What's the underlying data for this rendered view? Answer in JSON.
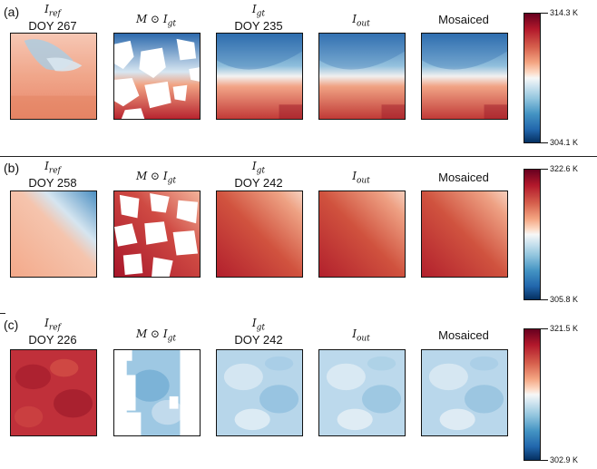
{
  "figure": {
    "rows": [
      {
        "label": "(a)",
        "titles": [
          {
            "math_base": "I",
            "math_sub": "ref",
            "doy": "DOY 267"
          },
          {
            "math_base": "M ⊙ I",
            "math_sub": "gt",
            "doy": ""
          },
          {
            "math_base": "I",
            "math_sub": "gt",
            "doy": "DOY 235"
          },
          {
            "math_base": "I",
            "math_sub": "out",
            "doy": ""
          },
          {
            "text": "Mosaiced"
          }
        ],
        "colorbar": {
          "max_label": "314.3 K",
          "min_label": "304.1 K"
        }
      },
      {
        "label": "(b)",
        "titles": [
          {
            "math_base": "I",
            "math_sub": "ref",
            "doy": "DOY 258"
          },
          {
            "math_base": "M ⊙ I",
            "math_sub": "gt",
            "doy": ""
          },
          {
            "math_base": "I",
            "math_sub": "gt",
            "doy": "DOY 242"
          },
          {
            "math_base": "I",
            "math_sub": "out",
            "doy": ""
          },
          {
            "text": "Mosaiced"
          }
        ],
        "colorbar": {
          "max_label": "322.6 K",
          "min_label": "305.8 K"
        }
      },
      {
        "label": "(c)",
        "titles": [
          {
            "math_base": "I",
            "math_sub": "ref",
            "doy": "DOY 226"
          },
          {
            "math_base": "M ⊙ I",
            "math_sub": "gt",
            "doy": ""
          },
          {
            "math_base": "I",
            "math_sub": "gt",
            "doy": "DOY 242"
          },
          {
            "math_base": "I",
            "math_sub": "out",
            "doy": ""
          },
          {
            "text": "Mosaiced"
          }
        ],
        "colorbar": {
          "max_label": "321.5 K",
          "min_label": "302.9 K"
        }
      }
    ],
    "colormap": {
      "high": "#b2182b",
      "mid": "#f7f7f7",
      "low": "#2166ac"
    }
  }
}
